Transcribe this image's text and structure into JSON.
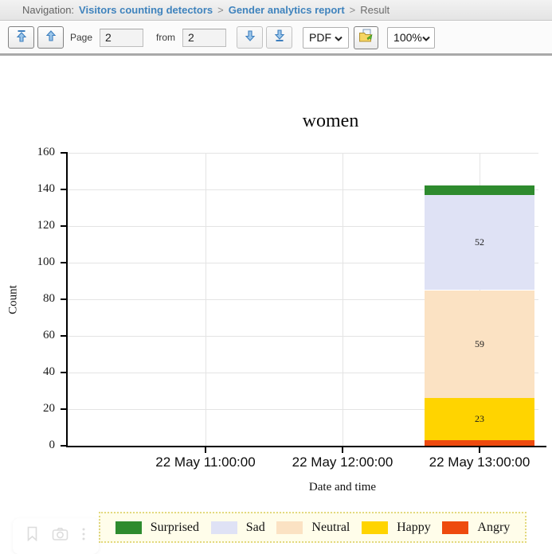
{
  "breadcrumb": {
    "prefix": "Navigation:",
    "separator": ">",
    "link1": "Visitors counting detectors",
    "link2": "Gender analytics report",
    "current": "Result"
  },
  "toolbar": {
    "page_label": "Page",
    "page_value": "2",
    "from_label": "from",
    "total_pages_value": "2",
    "format_selected": "PDF",
    "zoom_selected": "100%"
  },
  "chart_data": {
    "type": "bar",
    "stacked": true,
    "title": "women",
    "xlabel": "Date and time",
    "ylabel": "Count",
    "ylim": [
      0,
      160
    ],
    "ytick_step": 20,
    "grid": true,
    "legend_position": "bottom",
    "categories": [
      "22 May 11:00:00",
      "22 May 12:00:00",
      "22 May 13:00:00"
    ],
    "series": [
      {
        "name": "Angry",
        "color": "#ee4a0e",
        "values": [
          0,
          0,
          3
        ]
      },
      {
        "name": "Happy",
        "color": "#ffd400",
        "values": [
          0,
          0,
          23
        ]
      },
      {
        "name": "Neutral",
        "color": "#fbe2c3",
        "values": [
          0,
          0,
          59
        ]
      },
      {
        "name": "Sad",
        "color": "#dfe2f5",
        "values": [
          0,
          0,
          52
        ]
      },
      {
        "name": "Surprised",
        "color": "#2e8b2e",
        "values": [
          0,
          0,
          5
        ]
      }
    ]
  },
  "colors": {
    "link_blue": "#3f83bd",
    "arrow_blue_fill": "#9cc6ea",
    "arrow_blue_stroke": "#3e7fbe",
    "legend_bg": "#fffdea",
    "legend_border": "#e3d97f"
  }
}
